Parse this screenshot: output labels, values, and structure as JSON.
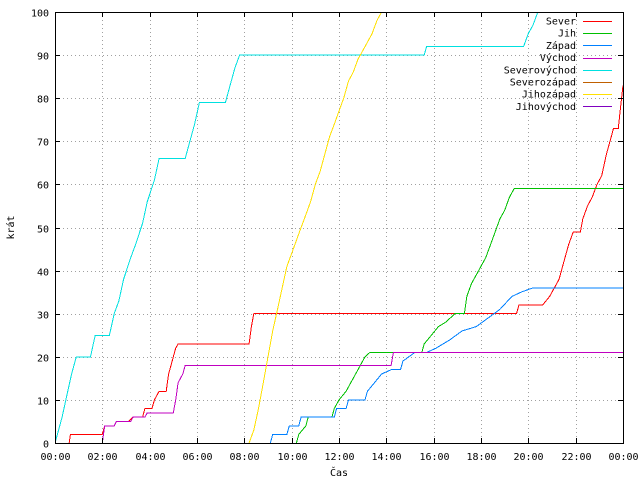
{
  "chart_data": {
    "type": "line",
    "title": "",
    "xlabel": "Čas",
    "ylabel": "krát",
    "xlim": [
      0,
      24
    ],
    "ylim": [
      0,
      100
    ],
    "grid": true,
    "legend_position": "top-right",
    "x_ticks": [
      {
        "value": 0,
        "label": "00:00"
      },
      {
        "value": 2,
        "label": "02:00"
      },
      {
        "value": 4,
        "label": "04:00"
      },
      {
        "value": 6,
        "label": "06:00"
      },
      {
        "value": 8,
        "label": "08:00"
      },
      {
        "value": 10,
        "label": "10:00"
      },
      {
        "value": 12,
        "label": "12:00"
      },
      {
        "value": 14,
        "label": "14:00"
      },
      {
        "value": 16,
        "label": "16:00"
      },
      {
        "value": 18,
        "label": "18:00"
      },
      {
        "value": 20,
        "label": "20:00"
      },
      {
        "value": 22,
        "label": "22:00"
      },
      {
        "value": 24,
        "label": "00:00"
      }
    ],
    "y_ticks": [
      0,
      10,
      20,
      30,
      40,
      50,
      60,
      70,
      80,
      90,
      100
    ],
    "series": [
      {
        "name": "Sever",
        "color": "#ff0000",
        "points": [
          [
            0.6,
            0
          ],
          [
            0.65,
            2
          ],
          [
            2.0,
            2
          ],
          [
            2.1,
            4
          ],
          [
            2.5,
            4
          ],
          [
            2.6,
            5
          ],
          [
            3.1,
            5
          ],
          [
            3.3,
            6
          ],
          [
            3.7,
            6
          ],
          [
            3.8,
            8
          ],
          [
            4.1,
            8
          ],
          [
            4.2,
            10
          ],
          [
            4.4,
            12
          ],
          [
            4.7,
            12
          ],
          [
            4.8,
            16
          ],
          [
            4.9,
            18
          ],
          [
            5.0,
            20
          ],
          [
            5.1,
            22
          ],
          [
            5.2,
            23
          ],
          [
            8.2,
            23
          ],
          [
            8.3,
            27
          ],
          [
            8.4,
            30
          ],
          [
            19.1,
            30
          ],
          [
            19.5,
            30
          ],
          [
            19.6,
            32
          ],
          [
            20.6,
            32
          ],
          [
            20.9,
            34
          ],
          [
            21.1,
            36
          ],
          [
            21.3,
            38
          ],
          [
            21.5,
            42
          ],
          [
            21.7,
            46
          ],
          [
            21.9,
            49
          ],
          [
            22.2,
            49
          ],
          [
            22.3,
            52
          ],
          [
            22.5,
            55
          ],
          [
            22.7,
            57
          ],
          [
            22.9,
            60
          ],
          [
            23.1,
            62
          ],
          [
            23.3,
            67
          ],
          [
            23.5,
            71
          ],
          [
            23.6,
            73
          ],
          [
            23.8,
            73
          ],
          [
            23.9,
            78
          ],
          [
            24.0,
            83
          ]
        ]
      },
      {
        "name": "Jih",
        "color": "#00c000",
        "points": [
          [
            10.2,
            0
          ],
          [
            10.3,
            2
          ],
          [
            10.6,
            4
          ],
          [
            10.7,
            6
          ],
          [
            11.7,
            6
          ],
          [
            11.8,
            8
          ],
          [
            12.0,
            10
          ],
          [
            12.3,
            12
          ],
          [
            12.5,
            14
          ],
          [
            12.7,
            16
          ],
          [
            12.9,
            18
          ],
          [
            13.1,
            20
          ],
          [
            13.3,
            21
          ],
          [
            15.5,
            21
          ],
          [
            15.6,
            23
          ],
          [
            15.9,
            25
          ],
          [
            16.2,
            27
          ],
          [
            16.5,
            28
          ],
          [
            16.9,
            30
          ],
          [
            17.3,
            30
          ],
          [
            17.4,
            34
          ],
          [
            17.6,
            37
          ],
          [
            17.8,
            39
          ],
          [
            18.0,
            41
          ],
          [
            18.2,
            43
          ],
          [
            18.4,
            46
          ],
          [
            18.6,
            49
          ],
          [
            18.8,
            52
          ],
          [
            19.0,
            54
          ],
          [
            19.2,
            57
          ],
          [
            19.4,
            59
          ],
          [
            24.0,
            59
          ]
        ]
      },
      {
        "name": "Západ",
        "color": "#0080ff",
        "points": [
          [
            9.1,
            0
          ],
          [
            9.2,
            2
          ],
          [
            9.8,
            2
          ],
          [
            9.9,
            4
          ],
          [
            10.3,
            4
          ],
          [
            10.4,
            6
          ],
          [
            11.8,
            6
          ],
          [
            11.9,
            8
          ],
          [
            12.3,
            8
          ],
          [
            12.4,
            10
          ],
          [
            13.1,
            10
          ],
          [
            13.2,
            12
          ],
          [
            13.5,
            14
          ],
          [
            13.8,
            16
          ],
          [
            14.2,
            17
          ],
          [
            14.6,
            17
          ],
          [
            14.7,
            19
          ],
          [
            15.2,
            21
          ],
          [
            15.7,
            21
          ],
          [
            16.1,
            22
          ],
          [
            16.7,
            24
          ],
          [
            17.2,
            26
          ],
          [
            17.8,
            27
          ],
          [
            18.3,
            29
          ],
          [
            18.8,
            31
          ],
          [
            19.3,
            34
          ],
          [
            19.7,
            35
          ],
          [
            20.2,
            36
          ],
          [
            24.0,
            36
          ]
        ]
      },
      {
        "name": "Východ",
        "color": "#c000c0",
        "points": [
          [
            2.0,
            0
          ],
          [
            2.1,
            4
          ],
          [
            2.5,
            4
          ],
          [
            2.6,
            5
          ],
          [
            3.2,
            5
          ],
          [
            3.3,
            6
          ],
          [
            3.8,
            6
          ],
          [
            3.9,
            7
          ],
          [
            5.0,
            7
          ],
          [
            5.1,
            10
          ],
          [
            5.2,
            14
          ],
          [
            5.4,
            16
          ],
          [
            5.5,
            18
          ],
          [
            14.2,
            18
          ],
          [
            14.3,
            21
          ],
          [
            24.0,
            21
          ]
        ]
      },
      {
        "name": "Severovýchod",
        "color": "#00e0e0",
        "points": [
          [
            0.0,
            0
          ],
          [
            0.1,
            2
          ],
          [
            0.3,
            6
          ],
          [
            0.5,
            11
          ],
          [
            0.7,
            16
          ],
          [
            0.9,
            20
          ],
          [
            1.5,
            20
          ],
          [
            1.7,
            25
          ],
          [
            2.3,
            25
          ],
          [
            2.5,
            30
          ],
          [
            2.7,
            33
          ],
          [
            2.9,
            38
          ],
          [
            3.2,
            43
          ],
          [
            3.4,
            46
          ],
          [
            3.7,
            51
          ],
          [
            3.9,
            56
          ],
          [
            4.2,
            61
          ],
          [
            4.4,
            66
          ],
          [
            5.5,
            66
          ],
          [
            5.7,
            70
          ],
          [
            5.9,
            74
          ],
          [
            6.1,
            79
          ],
          [
            7.2,
            79
          ],
          [
            7.4,
            83
          ],
          [
            7.6,
            87
          ],
          [
            7.8,
            90
          ],
          [
            15.6,
            90
          ],
          [
            15.7,
            92
          ],
          [
            19.8,
            92
          ],
          [
            20.0,
            95
          ],
          [
            20.2,
            97
          ],
          [
            20.4,
            100
          ]
        ]
      },
      {
        "name": "Severozápad",
        "color": "#c06000",
        "points": []
      },
      {
        "name": "Jihozápad",
        "color": "#ffe000",
        "points": [
          [
            8.2,
            0
          ],
          [
            8.4,
            3
          ],
          [
            8.6,
            8
          ],
          [
            8.8,
            14
          ],
          [
            9.0,
            20
          ],
          [
            9.2,
            26
          ],
          [
            9.4,
            31
          ],
          [
            9.6,
            36
          ],
          [
            9.8,
            41
          ],
          [
            10.0,
            44
          ],
          [
            10.2,
            47
          ],
          [
            10.4,
            50
          ],
          [
            10.6,
            53
          ],
          [
            10.8,
            56
          ],
          [
            11.0,
            60
          ],
          [
            11.2,
            63
          ],
          [
            11.4,
            67
          ],
          [
            11.6,
            71
          ],
          [
            11.8,
            74
          ],
          [
            12.0,
            77
          ],
          [
            12.2,
            80
          ],
          [
            12.4,
            84
          ],
          [
            12.6,
            86
          ],
          [
            12.8,
            89
          ],
          [
            13.0,
            91
          ],
          [
            13.2,
            93
          ],
          [
            13.4,
            95
          ],
          [
            13.6,
            98
          ],
          [
            13.8,
            100
          ]
        ]
      },
      {
        "name": "Jihovýchod",
        "color": "#8000c0",
        "points": []
      }
    ]
  }
}
